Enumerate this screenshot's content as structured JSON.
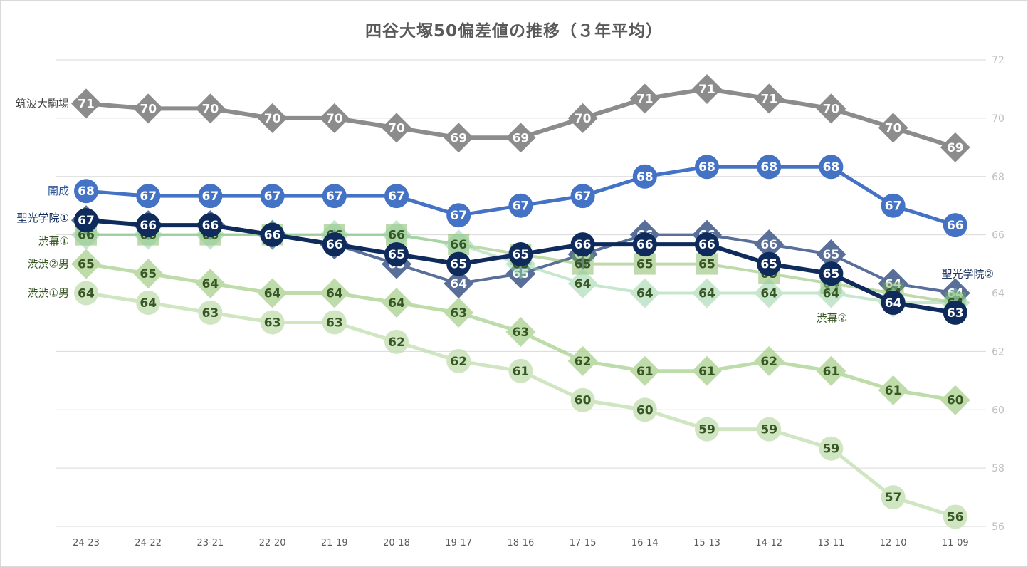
{
  "chart_data": {
    "type": "line",
    "title": "四谷大塚50偏差値の推移（３年平均）",
    "categories": [
      "24-23",
      "24-22",
      "23-21",
      "22-20",
      "21-19",
      "20-18",
      "19-17",
      "18-16",
      "17-15",
      "16-14",
      "15-13",
      "14-12",
      "13-11",
      "12-10",
      "11-09"
    ],
    "yaxis": {
      "min": 56,
      "max": 72,
      "ticks": [
        "56",
        "58",
        "60",
        "62",
        "64",
        "66",
        "68",
        "70",
        "72"
      ],
      "position": "right"
    },
    "grid": true,
    "series": [
      {
        "name": "筑波大駒場",
        "color": "#8c8c8c",
        "label_color": "#404040",
        "text_color": "#ffffff",
        "marker": "diamond",
        "width": 6,
        "values": [
          70.5,
          70.33,
          70.33,
          70,
          70,
          69.67,
          69.33,
          69.33,
          70,
          70.67,
          71,
          70.67,
          70.33,
          69.67,
          69
        ],
        "labels": [
          "71",
          "70",
          "70",
          "70",
          "70",
          "70",
          "69",
          "69",
          "70",
          "71",
          "71",
          "71",
          "70",
          "70",
          "69"
        ]
      },
      {
        "name": "開成",
        "color": "#4472c4",
        "label_color": "#2f5597",
        "text_color": "#ffffff",
        "marker": "circle",
        "width": 5,
        "values": [
          67.5,
          67.33,
          67.33,
          67.33,
          67.33,
          67.33,
          66.67,
          67,
          67.33,
          68,
          68.33,
          68.33,
          68.33,
          67,
          66.33
        ],
        "labels": [
          "68",
          "67",
          "67",
          "67",
          "67",
          "67",
          "67",
          "67",
          "67",
          "68",
          "68",
          "68",
          "68",
          "67",
          "66"
        ]
      },
      {
        "name": "聖光学院②",
        "color": "#5a6e9a",
        "label_color": "#203864",
        "text_color": "#ffffff",
        "marker": "diamond",
        "width": 4,
        "values": [
          66.5,
          66.33,
          66.33,
          66,
          65.67,
          65,
          64.33,
          64.67,
          65.33,
          66,
          66,
          65.67,
          65.33,
          64.33,
          64
        ],
        "labels": [
          "67",
          "66",
          "66",
          "66",
          "66",
          "65",
          "64",
          "65",
          "65",
          "66",
          "66",
          "66",
          "65",
          "64",
          "64"
        ]
      },
      {
        "name": "渋幕①",
        "color": "#70ad47",
        "label_color": "#375623",
        "text_color": "#375623",
        "marker": "square",
        "width": 4,
        "opacity": 0.45,
        "values": [
          66,
          66,
          66,
          66,
          66,
          66,
          65.67,
          65.33,
          65,
          65,
          65,
          64.67,
          64.33,
          64,
          63.67
        ],
        "labels": [
          "66",
          "66",
          "66",
          "66",
          "66",
          "66",
          "66",
          "65",
          "65",
          "65",
          "65",
          "65",
          "64",
          "64",
          "64"
        ]
      },
      {
        "name": "渋幕②",
        "color": "#8fd19e",
        "label_color": "#375623",
        "text_color": "#375623",
        "marker": "diamond",
        "width": 4,
        "opacity": 0.5,
        "values": [
          66,
          66,
          66,
          66,
          66,
          66,
          65.67,
          65,
          64.33,
          64,
          64,
          64,
          64,
          63.67,
          63.67
        ],
        "labels": [
          "66",
          "66",
          "66",
          "66",
          "66",
          "66",
          "66",
          "65",
          "64",
          "64",
          "64",
          "64",
          "64",
          "64",
          "64"
        ]
      },
      {
        "name": "聖光学院①",
        "color": "#0f2b5b",
        "label_color": "#0f2b5b",
        "text_color": "#ffffff",
        "marker": "circle",
        "width": 6,
        "values": [
          66.5,
          66.33,
          66.33,
          66,
          65.67,
          65.33,
          65,
          65.33,
          65.67,
          65.67,
          65.67,
          65,
          64.67,
          63.67,
          63.33
        ],
        "labels": [
          "67",
          "66",
          "66",
          "66",
          "66",
          "65",
          "65",
          "65",
          "66",
          "66",
          "66",
          "65",
          "65",
          "64",
          "63"
        ]
      },
      {
        "name": "渋渋②男",
        "color": "#a9d08e",
        "label_color": "#375623",
        "text_color": "#375623",
        "marker": "diamond",
        "width": 5,
        "opacity": 0.75,
        "values": [
          65,
          64.67,
          64.33,
          64,
          64,
          63.67,
          63.33,
          62.67,
          61.67,
          61.33,
          61.33,
          61.67,
          61.33,
          60.67,
          60.33
        ],
        "labels": [
          "65",
          "65",
          "64",
          "64",
          "64",
          "64",
          "63",
          "63",
          "62",
          "61",
          "61",
          "62",
          "61",
          "61",
          "60"
        ]
      },
      {
        "name": "渋渋①男",
        "color": "#c5e0b4",
        "label_color": "#375623",
        "text_color": "#375623",
        "marker": "circle",
        "width": 5,
        "opacity": 0.8,
        "values": [
          64,
          63.67,
          63.33,
          63,
          63,
          62.33,
          61.67,
          61.33,
          60.33,
          60,
          59.33,
          59.33,
          58.67,
          57,
          56.33
        ],
        "labels": [
          "64",
          "64",
          "63",
          "63",
          "63",
          "62",
          "62",
          "61",
          "60",
          "60",
          "59",
          "59",
          "59",
          "57",
          "56"
        ]
      }
    ],
    "series_labels": [
      {
        "name": "筑波大駒場",
        "anchor": "start",
        "color": "#404040"
      },
      {
        "name": "開成",
        "anchor": "start",
        "color": "#2f5597"
      },
      {
        "name": "聖光学院①",
        "anchor": "start",
        "color": "#0f2b5b"
      },
      {
        "name": "渋幕①",
        "anchor": "start",
        "color": "#375623"
      },
      {
        "name": "渋渋②男",
        "anchor": "start",
        "color": "#375623"
      },
      {
        "name": "渋渋①男",
        "anchor": "start",
        "color": "#375623"
      },
      {
        "name": "聖光学院②",
        "anchor": "end",
        "color": "#203864"
      },
      {
        "name": "渋幕②",
        "anchor": "end",
        "color": "#375623"
      }
    ]
  }
}
